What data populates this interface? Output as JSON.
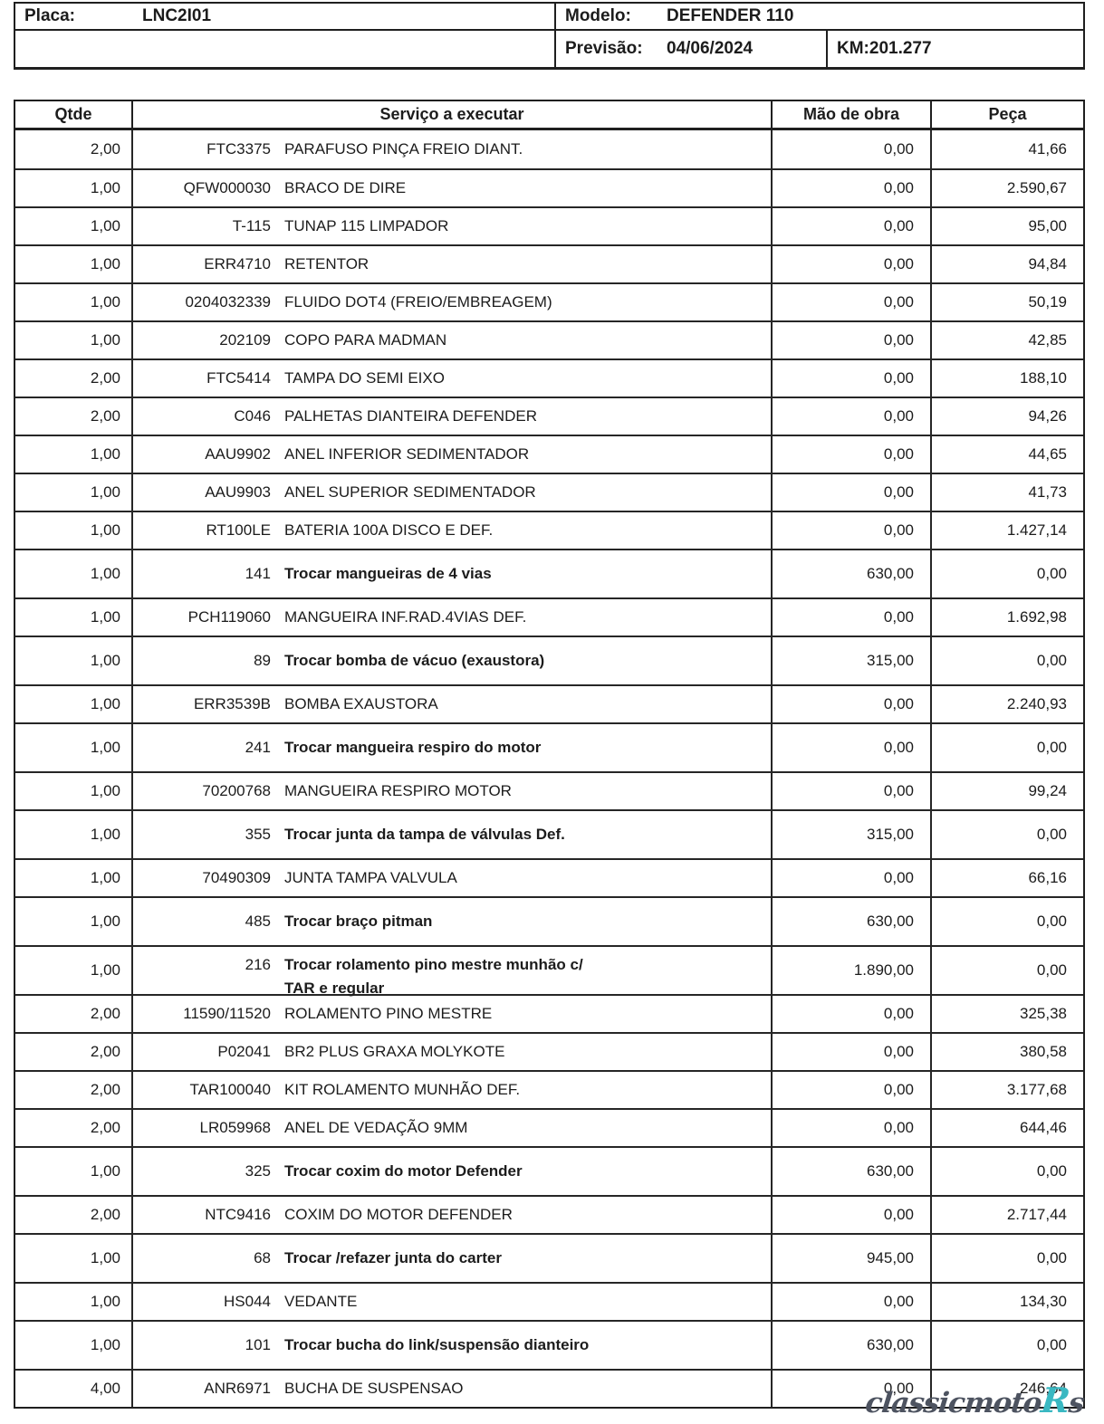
{
  "header": {
    "placa_label": "Placa:",
    "placa_value": "LNC2I01",
    "modelo_label": "Modelo:",
    "modelo_value": "DEFENDER 110",
    "previsao_label": "Previsão:",
    "previsao_value": "04/06/2024",
    "km_value": "KM:201.277"
  },
  "table": {
    "columns": [
      "Qtde",
      "Serviço a executar",
      "Mão de obra",
      "Peça"
    ],
    "rows": [
      {
        "qtde": "2,00",
        "code": "FTC3375",
        "desc": "PARAFUSO PINÇA FREIO DIANT.",
        "mao": "0,00",
        "peca": "41,66",
        "service": false
      },
      {
        "qtde": "1,00",
        "code": "QFW000030",
        "desc": "BRACO DE DIRE",
        "mao": "0,00",
        "peca": "2.590,67",
        "service": false
      },
      {
        "qtde": "1,00",
        "code": "T-115",
        "desc": "TUNAP 115 LIMPADOR",
        "mao": "0,00",
        "peca": "95,00",
        "service": false
      },
      {
        "qtde": "1,00",
        "code": "ERR4710",
        "desc": "RETENTOR",
        "mao": "0,00",
        "peca": "94,84",
        "service": false
      },
      {
        "qtde": "1,00",
        "code": "0204032339",
        "desc": "FLUIDO DOT4 (FREIO/EMBREAGEM)",
        "mao": "0,00",
        "peca": "50,19",
        "service": false
      },
      {
        "qtde": "1,00",
        "code": "202109",
        "desc": "COPO PARA MADMAN",
        "mao": "0,00",
        "peca": "42,85",
        "service": false
      },
      {
        "qtde": "2,00",
        "code": "FTC5414",
        "desc": "TAMPA DO SEMI EIXO",
        "mao": "0,00",
        "peca": "188,10",
        "service": false
      },
      {
        "qtde": "2,00",
        "code": "C046",
        "desc": "PALHETAS DIANTEIRA DEFENDER",
        "mao": "0,00",
        "peca": "94,26",
        "service": false
      },
      {
        "qtde": "1,00",
        "code": "AAU9902",
        "desc": "ANEL INFERIOR SEDIMENTADOR",
        "mao": "0,00",
        "peca": "44,65",
        "service": false
      },
      {
        "qtde": "1,00",
        "code": "AAU9903",
        "desc": "ANEL SUPERIOR SEDIMENTADOR",
        "mao": "0,00",
        "peca": "41,73",
        "service": false
      },
      {
        "qtde": "1,00",
        "code": "RT100LE",
        "desc": "BATERIA 100A DISCO E DEF.",
        "mao": "0,00",
        "peca": "1.427,14",
        "service": false
      },
      {
        "qtde": "1,00",
        "code": "141",
        "desc": "Trocar mangueiras de 4 vias",
        "mao": "630,00",
        "peca": "0,00",
        "service": true
      },
      {
        "qtde": "1,00",
        "code": "PCH119060",
        "desc": "MANGUEIRA INF.RAD.4VIAS DEF.",
        "mao": "0,00",
        "peca": "1.692,98",
        "service": false
      },
      {
        "qtde": "1,00",
        "code": "89",
        "desc": "Trocar bomba de vácuo (exaustora)",
        "mao": "315,00",
        "peca": "0,00",
        "service": true
      },
      {
        "qtde": "1,00",
        "code": "ERR3539B",
        "desc": "BOMBA EXAUSTORA",
        "mao": "0,00",
        "peca": "2.240,93",
        "service": false
      },
      {
        "qtde": "1,00",
        "code": "241",
        "desc": "Trocar mangueira respiro do motor",
        "mao": "0,00",
        "peca": "0,00",
        "service": true
      },
      {
        "qtde": "1,00",
        "code": "70200768",
        "desc": "MANGUEIRA RESPIRO MOTOR",
        "mao": "0,00",
        "peca": "99,24",
        "service": false
      },
      {
        "qtde": "1,00",
        "code": "355",
        "desc": "Trocar junta da tampa de válvulas Def.",
        "mao": "315,00",
        "peca": "0,00",
        "service": true
      },
      {
        "qtde": "1,00",
        "code": "70490309",
        "desc": "JUNTA TAMPA VALVULA",
        "mao": "0,00",
        "peca": "66,16",
        "service": false
      },
      {
        "qtde": "1,00",
        "code": "485",
        "desc": "Trocar braço pitman",
        "mao": "630,00",
        "peca": "0,00",
        "service": true
      },
      {
        "qtde": "1,00",
        "code": "216",
        "desc": "Trocar rolamento pino mestre munhão c/",
        "desc2": "TAR e regular",
        "mao": "1.890,00",
        "peca": "0,00",
        "service": true
      },
      {
        "qtde": "2,00",
        "code": "11590/11520",
        "desc": "ROLAMENTO PINO MESTRE",
        "mao": "0,00",
        "peca": "325,38",
        "service": false
      },
      {
        "qtde": "2,00",
        "code": "P02041",
        "desc": "BR2 PLUS GRAXA MOLYKOTE",
        "mao": "0,00",
        "peca": "380,58",
        "service": false
      },
      {
        "qtde": "2,00",
        "code": "TAR100040",
        "desc": "KIT ROLAMENTO MUNHÃO DEF.",
        "mao": "0,00",
        "peca": "3.177,68",
        "service": false
      },
      {
        "qtde": "2,00",
        "code": "LR059968",
        "desc": "ANEL DE VEDAÇÃO 9MM",
        "mao": "0,00",
        "peca": "644,46",
        "service": false
      },
      {
        "qtde": "1,00",
        "code": "325",
        "desc": "Trocar coxim do motor Defender",
        "mao": "630,00",
        "peca": "0,00",
        "service": true
      },
      {
        "qtde": "2,00",
        "code": "NTC9416",
        "desc": "COXIM DO MOTOR DEFENDER",
        "mao": "0,00",
        "peca": "2.717,44",
        "service": false
      },
      {
        "qtde": "1,00",
        "code": "68",
        "desc": "Trocar /refazer junta do carter",
        "mao": "945,00",
        "peca": "0,00",
        "service": true
      },
      {
        "qtde": "1,00",
        "code": "HS044",
        "desc": "VEDANTE",
        "mao": "0,00",
        "peca": "134,30",
        "service": false
      },
      {
        "qtde": "1,00",
        "code": "101",
        "desc": "Trocar bucha do link/suspensão dianteiro",
        "mao": "630,00",
        "peca": "0,00",
        "service": true
      },
      {
        "qtde": "4,00",
        "code": "ANR6971",
        "desc": "BUCHA DE SUSPENSAO",
        "mao": "0,00",
        "peca": "246,64",
        "service": false
      }
    ]
  },
  "watermark": {
    "text_dark": "classicmoto",
    "text_accent": "R",
    "text_tail": "s",
    "dark_color": "#4d5360",
    "accent_color": "#3ab8c2"
  }
}
